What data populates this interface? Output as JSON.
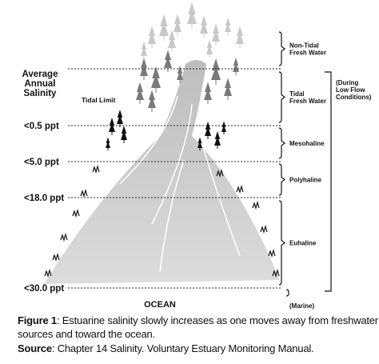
{
  "diagram": {
    "axis_title": [
      "Average",
      "Annual",
      "Salinity"
    ],
    "tidal_limit": "Tidal Limit",
    "levels": [
      "<0.5 ppt",
      "<5.0 ppt",
      "<18.0 ppt",
      "<30.0 ppt"
    ],
    "ocean": "OCEAN",
    "zones": [
      {
        "label": [
          "Non-Tidal",
          "Fresh Water"
        ]
      },
      {
        "label": [
          "Tidal",
          "Fresh Water"
        ]
      },
      {
        "label": [
          "Mesohaline"
        ]
      },
      {
        "label": [
          "Polyhaline"
        ]
      },
      {
        "label": [
          "Euhaline"
        ]
      }
    ],
    "low_flow_note": [
      "(During",
      "Low Flow",
      "Conditions)"
    ],
    "marine": "(Marine)"
  },
  "caption": {
    "figure_label": "Figure 1",
    "figure_text": [
      ": Estuarine salinity slowly increases as one moves away from freshwater",
      "sources and toward the ocean."
    ],
    "source_label": "Source",
    "source_text": ": Chapter 14 Salinity. Voluntary Estuary Monitoring Manual."
  }
}
